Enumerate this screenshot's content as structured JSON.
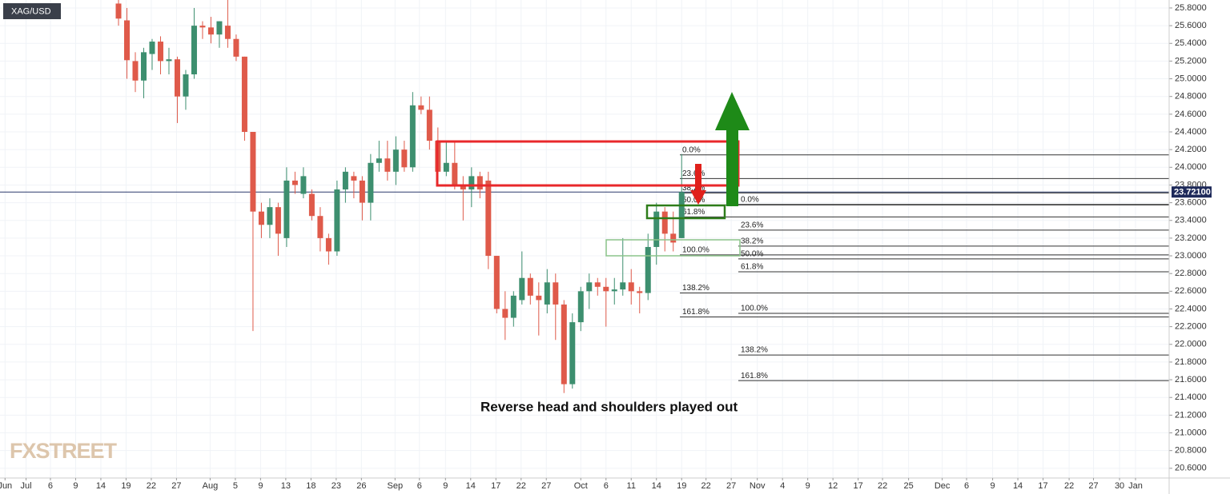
{
  "header": {
    "symbol": "XAG/USD",
    "watermark": "FXSTREET"
  },
  "chart_data": {
    "type": "candlestick",
    "annotation": "Reverse head and shoulders played out",
    "up_color": "#3d8f6f",
    "down_color": "#df5a4a",
    "grid": true,
    "x": [
      14,
      15,
      16,
      17,
      18,
      19,
      20,
      21,
      22,
      23,
      24,
      25,
      26,
      27,
      28,
      29,
      30,
      31,
      32,
      33,
      34,
      35,
      36,
      37,
      38,
      39,
      40,
      41,
      42,
      43,
      44,
      45,
      46,
      47,
      48,
      49,
      50,
      51,
      52,
      53,
      54,
      55,
      56,
      57,
      58,
      59,
      60,
      61,
      62,
      63,
      64,
      65,
      66,
      67,
      68,
      69,
      70,
      71,
      72,
      73,
      74,
      75,
      76,
      77,
      78,
      79,
      80,
      81
    ],
    "open": [
      25.85,
      25.66,
      25.2,
      24.98,
      25.28,
      25.42,
      25.2,
      25.22,
      24.8,
      25.05,
      25.6,
      25.58,
      25.5,
      25.6,
      25.45,
      25.25,
      24.4,
      23.5,
      23.35,
      23.55,
      23.2,
      23.85,
      23.7,
      23.7,
      23.45,
      23.2,
      23.05,
      23.75,
      23.9,
      23.85,
      23.6,
      24.05,
      24.1,
      23.95,
      24.2,
      24.0,
      24.7,
      24.65,
      24.3,
      23.95,
      24.05,
      23.8,
      23.75,
      23.9,
      23.85,
      23.0,
      22.4,
      22.3,
      22.5,
      22.75,
      22.55,
      22.45,
      22.7,
      22.45,
      21.55,
      22.25,
      22.6,
      22.7,
      22.65,
      22.6,
      22.62,
      22.7,
      22.6,
      22.58,
      23.1,
      23.5,
      23.25,
      23.2
    ],
    "high": [
      25.95,
      25.8,
      25.3,
      25.35,
      25.45,
      25.48,
      25.35,
      25.25,
      25.1,
      25.8,
      25.65,
      25.7,
      25.65,
      25.9,
      25.5,
      25.25,
      24.4,
      23.6,
      23.65,
      23.6,
      24.0,
      23.95,
      24.0,
      23.75,
      23.55,
      23.25,
      23.85,
      24.0,
      23.95,
      23.9,
      24.15,
      24.3,
      24.3,
      24.35,
      24.3,
      24.85,
      24.8,
      24.8,
      24.45,
      24.3,
      24.3,
      23.9,
      24.0,
      23.95,
      23.95,
      23.0,
      22.6,
      22.6,
      23.05,
      22.8,
      22.7,
      22.85,
      22.8,
      22.5,
      22.35,
      22.65,
      22.8,
      22.75,
      22.75,
      22.75,
      23.2,
      22.85,
      22.65,
      23.25,
      23.6,
      23.55,
      23.5,
      24.15
    ],
    "low": [
      25.6,
      25.0,
      24.85,
      24.78,
      25.1,
      25.05,
      25.05,
      24.5,
      24.65,
      25.0,
      25.45,
      25.4,
      25.35,
      25.35,
      25.2,
      24.3,
      22.15,
      23.2,
      23.2,
      23.0,
      23.1,
      23.7,
      23.65,
      23.4,
      23.05,
      22.9,
      23.0,
      23.6,
      23.65,
      23.4,
      23.4,
      23.95,
      23.85,
      23.8,
      23.95,
      23.95,
      24.6,
      24.2,
      23.9,
      23.9,
      23.75,
      23.4,
      23.55,
      23.65,
      22.85,
      22.35,
      22.05,
      22.2,
      22.45,
      22.45,
      22.1,
      22.35,
      22.05,
      21.45,
      21.5,
      22.15,
      22.4,
      22.55,
      22.2,
      22.45,
      22.55,
      22.45,
      22.35,
      22.5,
      22.9,
      23.05,
      23.05,
      23.2
    ],
    "close": [
      25.68,
      25.21,
      24.98,
      25.3,
      25.42,
      25.2,
      25.22,
      24.8,
      25.05,
      25.6,
      25.58,
      25.5,
      25.65,
      25.45,
      25.25,
      24.4,
      23.5,
      23.35,
      23.55,
      23.25,
      23.85,
      23.8,
      23.9,
      23.45,
      23.2,
      23.05,
      23.75,
      23.95,
      23.85,
      23.6,
      24.05,
      24.1,
      23.95,
      24.2,
      24.0,
      24.7,
      24.65,
      24.3,
      23.95,
      24.05,
      23.8,
      23.75,
      23.9,
      23.75,
      23.0,
      22.4,
      22.3,
      22.55,
      22.75,
      22.55,
      22.5,
      22.7,
      22.45,
      21.55,
      22.25,
      22.6,
      22.7,
      22.65,
      22.6,
      22.62,
      22.7,
      22.6,
      22.58,
      23.1,
      23.5,
      23.25,
      23.15,
      23.72
    ],
    "last_price": {
      "value": 23.721,
      "label": "23.72100"
    },
    "fib_sets": [
      {
        "levels": [
          {
            "label": "0.0%",
            "price": 24.14
          },
          {
            "label": "23.6%",
            "price": 23.873
          },
          {
            "label": "38.2%",
            "price": 23.71
          },
          {
            "label": "50.0%",
            "price": 23.575
          },
          {
            "label": "61.8%",
            "price": 23.44
          },
          {
            "label": "100.0%",
            "price": 23.01
          },
          {
            "label": "138.2%",
            "price": 22.58
          },
          {
            "label": "161.8%",
            "price": 22.31
          }
        ]
      },
      {
        "levels": [
          {
            "label": "0.0%",
            "price": 23.58
          },
          {
            "label": "23.6%",
            "price": 23.29
          },
          {
            "label": "38.2%",
            "price": 23.11
          },
          {
            "label": "50.0%",
            "price": 22.965
          },
          {
            "label": "61.8%",
            "price": 22.82
          },
          {
            "label": "100.0%",
            "price": 22.35
          },
          {
            "label": "138.2%",
            "price": 21.88
          },
          {
            "label": "161.8%",
            "price": 21.59
          }
        ]
      }
    ],
    "ylim": [
      20.49,
      25.89
    ],
    "yticks": [
      {
        "value": 25.8,
        "label": "25.8000"
      },
      {
        "value": 25.6,
        "label": "25.6000"
      },
      {
        "value": 25.4,
        "label": "25.4000"
      },
      {
        "value": 25.2,
        "label": "25.2000"
      },
      {
        "value": 25,
        "label": "25.0000"
      },
      {
        "value": 24.8,
        "label": "24.8000"
      },
      {
        "value": 24.6,
        "label": "24.6000"
      },
      {
        "value": 24.4,
        "label": "24.4000"
      },
      {
        "value": 24.2,
        "label": "24.2000"
      },
      {
        "value": 24,
        "label": "24.0000"
      },
      {
        "value": 23.8,
        "label": "23.8000"
      },
      {
        "value": 23.6,
        "label": "23.6000"
      },
      {
        "value": 23.4,
        "label": "23.4000"
      },
      {
        "value": 23.2,
        "label": "23.2000"
      },
      {
        "value": 23,
        "label": "23.0000"
      },
      {
        "value": 22.8,
        "label": "22.8000"
      },
      {
        "value": 22.6,
        "label": "22.6000"
      },
      {
        "value": 22.4,
        "label": "22.4000"
      },
      {
        "value": 22.2,
        "label": "22.2000"
      },
      {
        "value": 22,
        "label": "22.0000"
      },
      {
        "value": 21.8,
        "label": "21.8000"
      },
      {
        "value": 21.6,
        "label": "21.6000"
      },
      {
        "value": 21.4,
        "label": "21.4000"
      },
      {
        "value": 21.2,
        "label": "21.2000"
      },
      {
        "value": 21,
        "label": "21.0000"
      },
      {
        "value": 20.8,
        "label": "20.8000"
      },
      {
        "value": 20.6,
        "label": "20.6000"
      }
    ],
    "xlim": [
      -0.1,
      139
    ],
    "xticks": [
      {
        "value": 0.5,
        "label": "Jun"
      },
      {
        "value": 3,
        "label": "Jul"
      },
      {
        "value": 5.9,
        "label": "6"
      },
      {
        "value": 8.9,
        "label": "9"
      },
      {
        "value": 11.9,
        "label": "14"
      },
      {
        "value": 14.9,
        "label": "19"
      },
      {
        "value": 17.9,
        "label": "22"
      },
      {
        "value": 20.9,
        "label": "27"
      },
      {
        "value": 24.9,
        "label": "Aug"
      },
      {
        "value": 27.9,
        "label": "5"
      },
      {
        "value": 30.9,
        "label": "9"
      },
      {
        "value": 33.9,
        "label": "13"
      },
      {
        "value": 36.9,
        "label": "18"
      },
      {
        "value": 39.9,
        "label": "23"
      },
      {
        "value": 42.9,
        "label": "26"
      },
      {
        "value": 46.9,
        "label": "Sep"
      },
      {
        "value": 49.8,
        "label": "6"
      },
      {
        "value": 52.9,
        "label": "9"
      },
      {
        "value": 55.9,
        "label": "14"
      },
      {
        "value": 58.9,
        "label": "17"
      },
      {
        "value": 61.9,
        "label": "22"
      },
      {
        "value": 64.9,
        "label": "27"
      },
      {
        "value": 69,
        "label": "Oct"
      },
      {
        "value": 72,
        "label": "6"
      },
      {
        "value": 75,
        "label": "11"
      },
      {
        "value": 78,
        "label": "14"
      },
      {
        "value": 81,
        "label": "19"
      },
      {
        "value": 83.9,
        "label": "22"
      },
      {
        "value": 86.9,
        "label": "27"
      },
      {
        "value": 90,
        "label": "Nov"
      },
      {
        "value": 93,
        "label": "4"
      },
      {
        "value": 96,
        "label": "9"
      },
      {
        "value": 99,
        "label": "12"
      },
      {
        "value": 102,
        "label": "17"
      },
      {
        "value": 104.9,
        "label": "22"
      },
      {
        "value": 108,
        "label": "25"
      },
      {
        "value": 112,
        "label": "Dec"
      },
      {
        "value": 114.9,
        "label": "6"
      },
      {
        "value": 118,
        "label": "9"
      },
      {
        "value": 121,
        "label": "14"
      },
      {
        "value": 124,
        "label": "17"
      },
      {
        "value": 127.1,
        "label": "22"
      },
      {
        "value": 130,
        "label": "27"
      },
      {
        "value": 133.1,
        "label": "30"
      },
      {
        "value": 135,
        "label": "Jan"
      }
    ]
  }
}
